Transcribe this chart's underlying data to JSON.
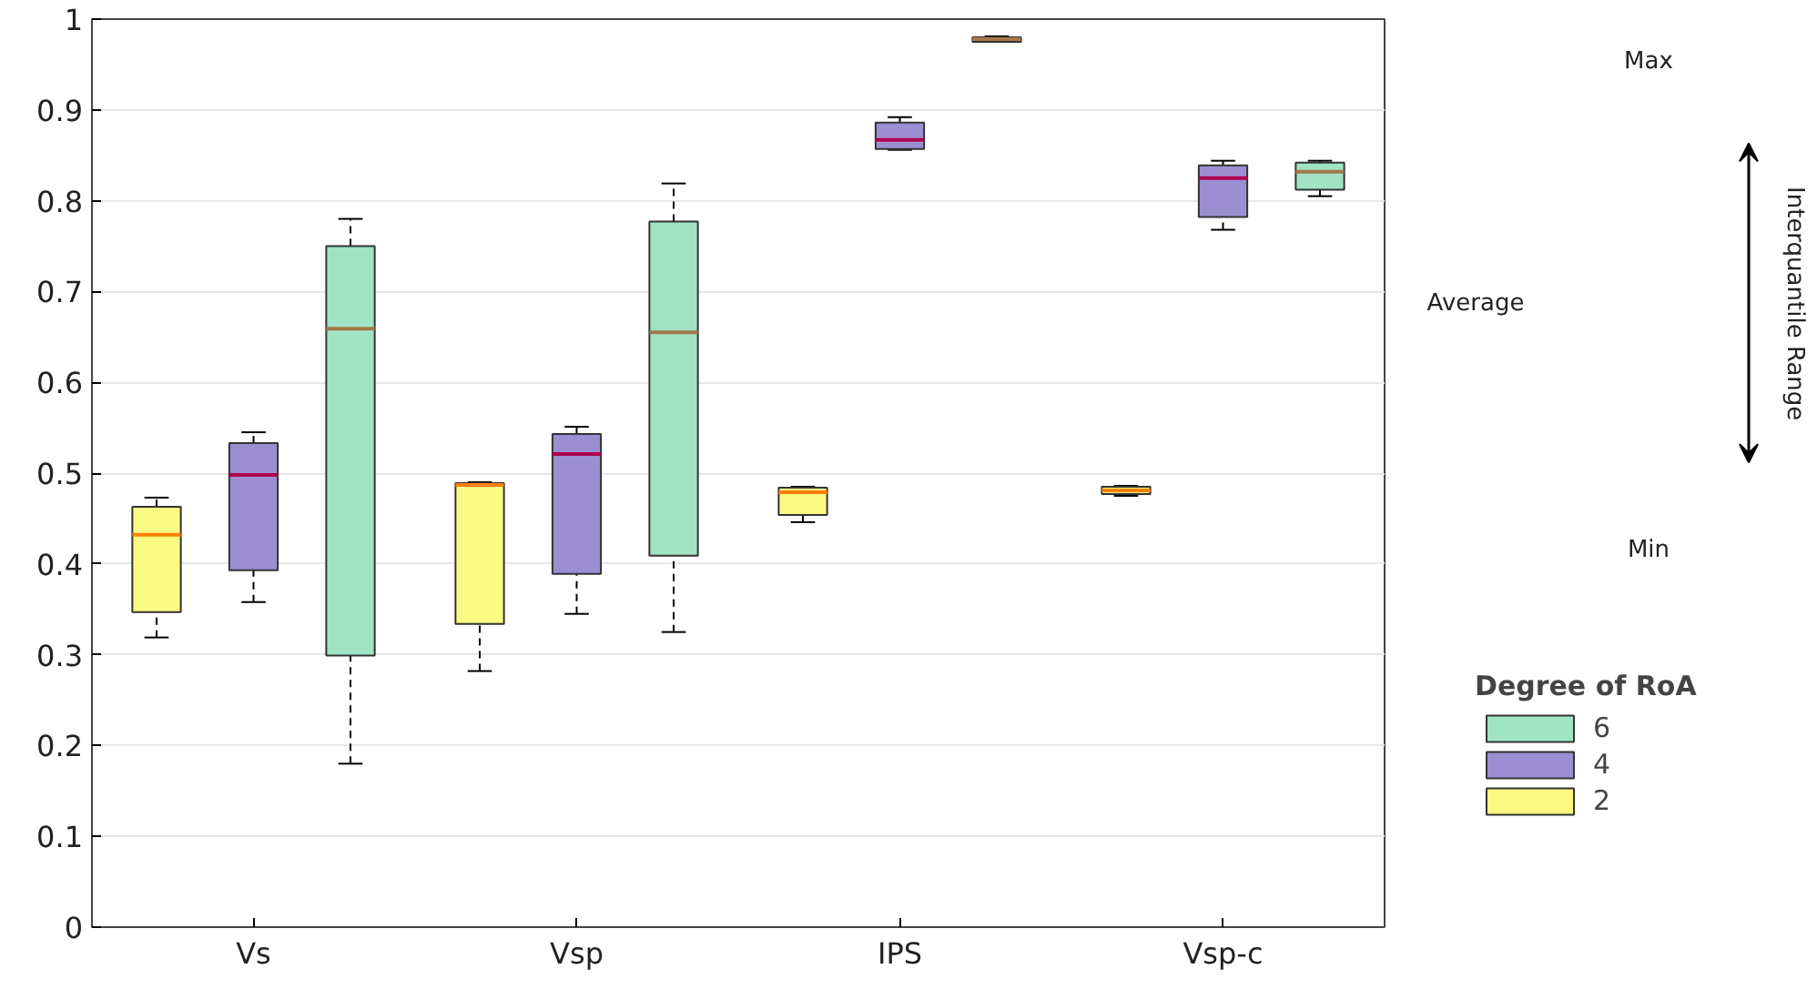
{
  "chart_data": {
    "type": "box",
    "categories": [
      "Vs",
      "Vsp",
      "IPS",
      "Vsp-c"
    ],
    "legend_title": "Degree of RoA",
    "legend": "right",
    "grid": "y",
    "ylim": [
      0,
      1
    ],
    "yticks": [
      0,
      0.1,
      0.2,
      0.3,
      0.4,
      0.5,
      0.6,
      0.7,
      0.8,
      0.9,
      1
    ],
    "annotations": [
      "Max",
      "Average",
      "Min",
      "Interquantile Range"
    ],
    "series": [
      {
        "name": "2",
        "color": "#fbfb84",
        "boxes": [
          {
            "low": 0.319,
            "q1": 0.347,
            "median": 0.432,
            "q3": 0.463,
            "high": 0.473
          },
          {
            "low": 0.282,
            "q1": 0.334,
            "median": 0.487,
            "q3": 0.489,
            "high": 0.49
          },
          {
            "low": 0.446,
            "q1": 0.454,
            "median": 0.479,
            "q3": 0.484,
            "high": 0.485
          },
          {
            "low": 0.475,
            "q1": 0.477,
            "median": 0.481,
            "q3": 0.485,
            "high": 0.486
          }
        ]
      },
      {
        "name": "4",
        "color": "#9b8fd1",
        "boxes": [
          {
            "low": 0.358,
            "q1": 0.393,
            "median": 0.498,
            "q3": 0.533,
            "high": 0.545
          },
          {
            "low": 0.345,
            "q1": 0.389,
            "median": 0.521,
            "q3": 0.543,
            "high": 0.551
          },
          {
            "low": 0.856,
            "q1": 0.857,
            "median": 0.867,
            "q3": 0.886,
            "high": 0.892
          },
          {
            "low": 0.768,
            "q1": 0.782,
            "median": 0.825,
            "q3": 0.839,
            "high": 0.844
          }
        ]
      },
      {
        "name": "6",
        "color": "#a0e4c4",
        "boxes": [
          {
            "low": 0.18,
            "q1": 0.299,
            "median": 0.659,
            "q3": 0.75,
            "high": 0.78
          },
          {
            "low": 0.325,
            "q1": 0.409,
            "median": 0.655,
            "q3": 0.777,
            "high": 0.819
          },
          {
            "low": 0.975,
            "q1": 0.975,
            "median": 0.978,
            "q3": 0.98,
            "high": 0.981
          },
          {
            "low": 0.805,
            "q1": 0.812,
            "median": 0.832,
            "q3": 0.842,
            "high": 0.844
          }
        ]
      }
    ]
  }
}
